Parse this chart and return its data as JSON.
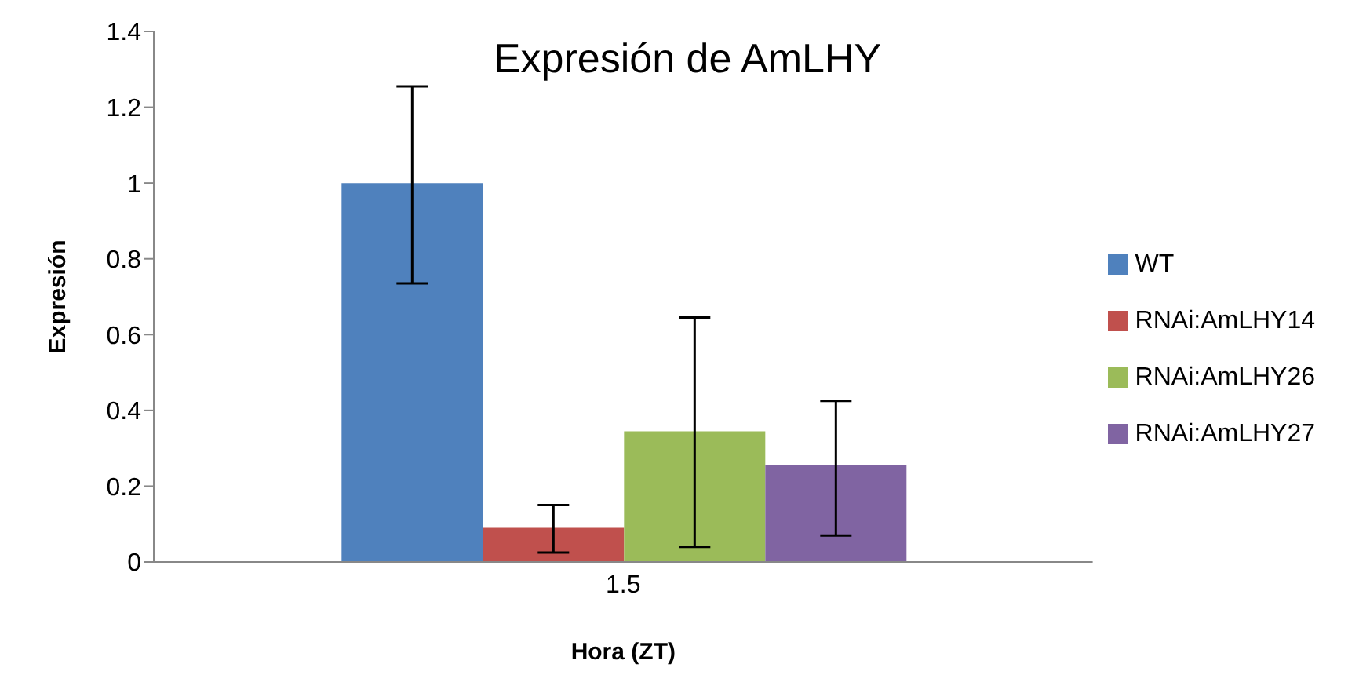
{
  "chart_data": {
    "type": "bar",
    "title": "Expresión de AmLHY",
    "xlabel": "Hora (ZT)",
    "ylabel": "Expresión",
    "categories": [
      "1.5"
    ],
    "series": [
      {
        "name": "WT",
        "color": "#4f81bd",
        "values": [
          1.0
        ],
        "errors": [
          [
            0.735,
            1.255
          ]
        ]
      },
      {
        "name": "RNAi:AmLHY14",
        "color": "#c0504d",
        "values": [
          0.09
        ],
        "errors": [
          [
            0.025,
            0.15
          ]
        ]
      },
      {
        "name": "RNAi:AmLHY26",
        "color": "#9bbb59",
        "values": [
          0.345
        ],
        "errors": [
          [
            0.04,
            0.645
          ]
        ]
      },
      {
        "name": "RNAi:AmLHY27",
        "color": "#8064a2",
        "values": [
          0.255
        ],
        "errors": [
          [
            0.07,
            0.425
          ]
        ]
      }
    ],
    "ylim": [
      0,
      1.4
    ],
    "yticks": [
      0,
      0.2,
      0.4,
      0.6,
      0.8,
      1,
      1.2,
      1.4
    ],
    "grid": false,
    "legend": "right"
  }
}
